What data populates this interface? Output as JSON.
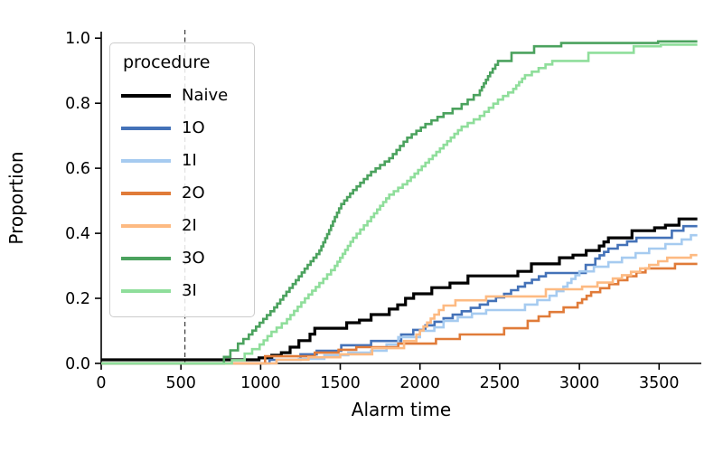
{
  "chart_data": {
    "type": "line",
    "subtype": "ecdf-step",
    "title": "",
    "xlabel": "Alarm time",
    "ylabel": "Proportion",
    "xlim": [
      0,
      3765
    ],
    "ylim": [
      0,
      1.02
    ],
    "x_ticks": [
      0,
      500,
      1000,
      1500,
      2000,
      2500,
      3000,
      3500
    ],
    "x_tick_labels": [
      "0",
      "500",
      "1000",
      "1500",
      "2000",
      "2500",
      "3000",
      "3500"
    ],
    "y_ticks": [
      0,
      0.2,
      0.4,
      0.6,
      0.8,
      1.0
    ],
    "y_tick_labels": [
      "0.0",
      "0.2",
      "0.4",
      "0.6",
      "0.8",
      "1.0"
    ],
    "grid": false,
    "legend_title": "procedure",
    "legend_position": "upper left",
    "axis_color": "#000000",
    "threshold_line": {
      "x": 525,
      "style": "dashed",
      "color": "#444444"
    },
    "series": [
      {
        "name": "Naive",
        "color": "#000000",
        "linewidth": 3.2,
        "points": [
          [
            0,
            0.011
          ],
          [
            990,
            0.017
          ],
          [
            1070,
            0.025
          ],
          [
            1130,
            0.033
          ],
          [
            1185,
            0.05
          ],
          [
            1240,
            0.07
          ],
          [
            1310,
            0.09
          ],
          [
            1340,
            0.108
          ],
          [
            1540,
            0.125
          ],
          [
            1620,
            0.133
          ],
          [
            1693,
            0.15
          ],
          [
            1807,
            0.167
          ],
          [
            1860,
            0.18
          ],
          [
            1909,
            0.2
          ],
          [
            1960,
            0.214
          ],
          [
            2074,
            0.233
          ],
          [
            2188,
            0.247
          ],
          [
            2301,
            0.269
          ],
          [
            2614,
            0.283
          ],
          [
            2699,
            0.306
          ],
          [
            2875,
            0.325
          ],
          [
            2960,
            0.333
          ],
          [
            3125,
            0.361
          ],
          [
            3182,
            0.386
          ],
          [
            3330,
            0.408
          ],
          [
            3472,
            0.417
          ],
          [
            3540,
            0.425
          ],
          [
            3625,
            0.444
          ],
          [
            3740,
            0.444
          ]
        ]
      },
      {
        "name": "1O",
        "color": "#4472b8",
        "linewidth": 2.6,
        "points": [
          [
            0,
            0
          ],
          [
            1056,
            0.011
          ],
          [
            1250,
            0.028
          ],
          [
            1352,
            0.039
          ],
          [
            1506,
            0.056
          ],
          [
            1693,
            0.069
          ],
          [
            1882,
            0.089
          ],
          [
            2034,
            0.117
          ],
          [
            2205,
            0.15
          ],
          [
            2375,
            0.181
          ],
          [
            2528,
            0.214
          ],
          [
            2659,
            0.247
          ],
          [
            2790,
            0.278
          ],
          [
            3040,
            0.303
          ],
          [
            3100,
            0.322
          ],
          [
            3182,
            0.353
          ],
          [
            3358,
            0.386
          ],
          [
            3580,
            0.408
          ],
          [
            3653,
            0.422
          ],
          [
            3740,
            0.422
          ]
        ]
      },
      {
        "name": "1I",
        "color": "#a6cbf0",
        "linewidth": 2.6,
        "points": [
          [
            0,
            0
          ],
          [
            1100,
            0.011
          ],
          [
            1240,
            0.014
          ],
          [
            1400,
            0.025
          ],
          [
            1550,
            0.033
          ],
          [
            1693,
            0.039
          ],
          [
            1790,
            0.058
          ],
          [
            1864,
            0.081
          ],
          [
            2000,
            0.1
          ],
          [
            2090,
            0.111
          ],
          [
            2148,
            0.131
          ],
          [
            2415,
            0.164
          ],
          [
            2659,
            0.181
          ],
          [
            2813,
            0.208
          ],
          [
            2900,
            0.236
          ],
          [
            3000,
            0.283
          ],
          [
            3182,
            0.311
          ],
          [
            3438,
            0.353
          ],
          [
            3642,
            0.381
          ],
          [
            3700,
            0.394
          ],
          [
            3740,
            0.394
          ]
        ]
      },
      {
        "name": "2O",
        "color": "#e07b39",
        "linewidth": 2.6,
        "points": [
          [
            0,
            0
          ],
          [
            1028,
            0.022
          ],
          [
            1340,
            0.033
          ],
          [
            1489,
            0.042
          ],
          [
            1600,
            0.05
          ],
          [
            1864,
            0.061
          ],
          [
            2100,
            0.075
          ],
          [
            2250,
            0.089
          ],
          [
            2528,
            0.108
          ],
          [
            2676,
            0.131
          ],
          [
            2813,
            0.158
          ],
          [
            2989,
            0.186
          ],
          [
            3074,
            0.219
          ],
          [
            3244,
            0.256
          ],
          [
            3415,
            0.292
          ],
          [
            3600,
            0.306
          ],
          [
            3740,
            0.306
          ]
        ]
      },
      {
        "name": "2I",
        "color": "#fdba82",
        "linewidth": 2.6,
        "points": [
          [
            0,
            0
          ],
          [
            1100,
            0.011
          ],
          [
            1300,
            0.019
          ],
          [
            1500,
            0.028
          ],
          [
            1700,
            0.047
          ],
          [
            1900,
            0.069
          ],
          [
            1977,
            0.089
          ],
          [
            2090,
            0.15
          ],
          [
            2148,
            0.178
          ],
          [
            2222,
            0.194
          ],
          [
            2415,
            0.206
          ],
          [
            2790,
            0.228
          ],
          [
            3017,
            0.236
          ],
          [
            3210,
            0.261
          ],
          [
            3381,
            0.292
          ],
          [
            3551,
            0.325
          ],
          [
            3700,
            0.333
          ],
          [
            3740,
            0.333
          ]
        ]
      },
      {
        "name": "3O",
        "color": "#4ba25e",
        "linewidth": 2.6,
        "points": [
          [
            0,
            0
          ],
          [
            770,
            0.02
          ],
          [
            810,
            0.04
          ],
          [
            858,
            0.061
          ],
          [
            926,
            0.089
          ],
          [
            994,
            0.125
          ],
          [
            1085,
            0.172
          ],
          [
            1142,
            0.208
          ],
          [
            1221,
            0.256
          ],
          [
            1295,
            0.303
          ],
          [
            1369,
            0.347
          ],
          [
            1430,
            0.41
          ],
          [
            1466,
            0.45
          ],
          [
            1506,
            0.49
          ],
          [
            1580,
            0.533
          ],
          [
            1693,
            0.589
          ],
          [
            1807,
            0.631
          ],
          [
            1920,
            0.694
          ],
          [
            2034,
            0.736
          ],
          [
            2148,
            0.769
          ],
          [
            2261,
            0.797
          ],
          [
            2375,
            0.839
          ],
          [
            2440,
            0.894
          ],
          [
            2489,
            0.93
          ],
          [
            2574,
            0.955
          ],
          [
            2716,
            0.975
          ],
          [
            2886,
            0.985
          ],
          [
            3494,
            0.99
          ],
          [
            3740,
            0.99
          ]
        ]
      },
      {
        "name": "3I",
        "color": "#8fde9b",
        "linewidth": 2.6,
        "points": [
          [
            0,
            0
          ],
          [
            820,
            0.01
          ],
          [
            900,
            0.03
          ],
          [
            994,
            0.058
          ],
          [
            1068,
            0.097
          ],
          [
            1165,
            0.136
          ],
          [
            1278,
            0.2
          ],
          [
            1369,
            0.247
          ],
          [
            1466,
            0.3
          ],
          [
            1580,
            0.386
          ],
          [
            1693,
            0.45
          ],
          [
            1807,
            0.519
          ],
          [
            1920,
            0.561
          ],
          [
            2034,
            0.617
          ],
          [
            2148,
            0.672
          ],
          [
            2261,
            0.728
          ],
          [
            2375,
            0.761
          ],
          [
            2489,
            0.811
          ],
          [
            2585,
            0.844
          ],
          [
            2659,
            0.886
          ],
          [
            2830,
            0.93
          ],
          [
            3057,
            0.955
          ],
          [
            3341,
            0.975
          ],
          [
            3511,
            0.98
          ],
          [
            3740,
            0.98
          ]
        ]
      }
    ]
  }
}
